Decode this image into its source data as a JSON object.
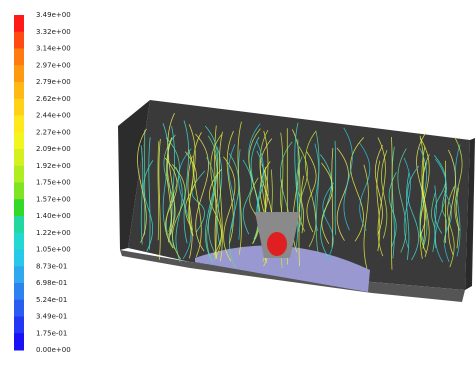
{
  "colorbar": {
    "labels": [
      "3.49e+00",
      "3.32e+00",
      "3.14e+00",
      "2.97e+00",
      "2.79e+00",
      "2.62e+00",
      "2.44e+00",
      "2.27e+00",
      "2.09e+00",
      "1.92e+00",
      "1.75e+00",
      "1.57e+00",
      "1.40e+00",
      "1.22e+00",
      "1.05e+00",
      "8.73e-01",
      "6.98e-01",
      "5.24e-01",
      "3.49e-01",
      "1.75e-01",
      "0.00e+00"
    ],
    "colors": [
      "#ff1a1a",
      "#ff4a14",
      "#ff7a10",
      "#ff9a10",
      "#ffb814",
      "#ffd218",
      "#ffe81c",
      "#f2f51e",
      "#d4f020",
      "#b0ec22",
      "#7ee424",
      "#34d828",
      "#22d8a0",
      "#22d8d0",
      "#28c8e8",
      "#30a8ee",
      "#2e82f0",
      "#2a5cf2",
      "#2236f4",
      "#1a10f8"
    ]
  }
}
